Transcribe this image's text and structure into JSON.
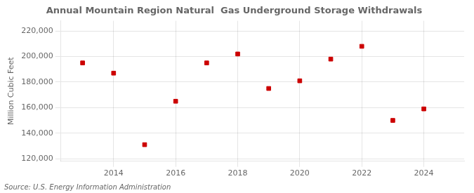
{
  "chart_data": {
    "type": "scatter",
    "title": "Annual Mountain Region Natural  Gas Underground Storage Withdrawals",
    "ylabel": "Million Cubic Feet",
    "source": "Source: U.S. Energy Information Administration",
    "x": [
      2013,
      2014,
      2015,
      2016,
      2017,
      2018,
      2019,
      2020,
      2021,
      2022,
      2023,
      2024
    ],
    "values": [
      195000,
      187000,
      131000,
      165000,
      195000,
      202000,
      175000,
      181000,
      198000,
      208000,
      150000,
      159000
    ],
    "color": "#cc0000",
    "marker": "square",
    "xlim": [
      2012.3,
      2025.3
    ],
    "xticks": [
      2014,
      2016,
      2018,
      2020,
      2022,
      2024
    ],
    "ylim": [
      118000,
      228000
    ],
    "yticks": [
      {
        "value": 120000,
        "label": "120,000"
      },
      {
        "value": 140000,
        "label": "140,000"
      },
      {
        "value": 160000,
        "label": "160,000"
      },
      {
        "value": 180000,
        "label": "180,000"
      },
      {
        "value": 200000,
        "label": "200,000"
      },
      {
        "value": 220000,
        "label": "220,000"
      }
    ],
    "grid": true
  }
}
